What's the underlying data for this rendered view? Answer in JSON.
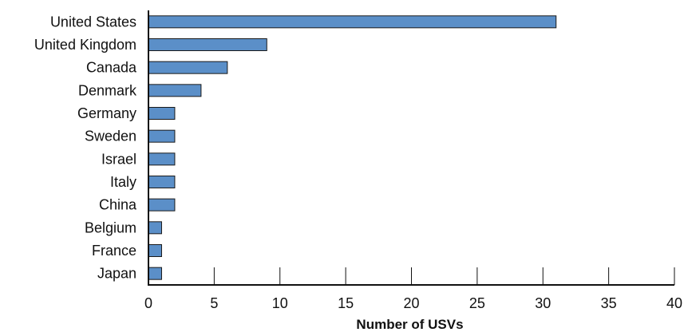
{
  "chart_data": {
    "type": "bar",
    "orientation": "horizontal",
    "categories": [
      "United States",
      "United Kingdom",
      "Canada",
      "Denmark",
      "Germany",
      "Sweden",
      "Israel",
      "Italy",
      "China",
      "Belgium",
      "France",
      "Japan"
    ],
    "values": [
      31,
      9,
      6,
      4,
      2,
      2,
      2,
      2,
      2,
      1,
      1,
      1
    ],
    "xlabel": "Number of USVs",
    "ylabel": "",
    "xlim": [
      0,
      40
    ],
    "xticks": [
      "0",
      "5",
      "10",
      "15",
      "20",
      "25",
      "30",
      "35",
      "40"
    ],
    "grid": false,
    "legend": "none",
    "bar_color": "#5b8fc8"
  }
}
